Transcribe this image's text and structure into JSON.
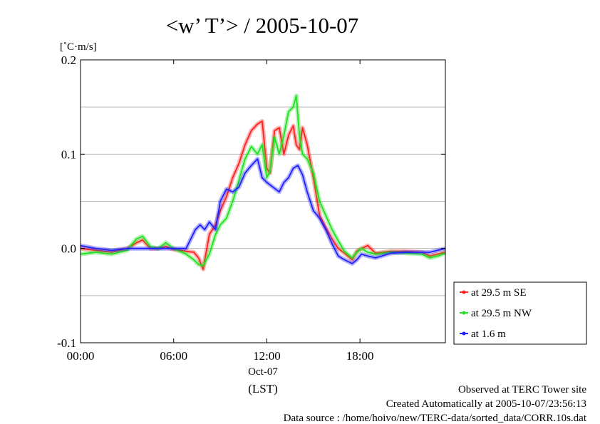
{
  "chart_data": {
    "type": "line",
    "title": "<w’ T’> / 2005-10-07",
    "ylabel": "[˚C·m/s]",
    "ylim": [
      -0.1,
      0.2
    ],
    "yticks": [
      {
        "value": 0.2,
        "label": "0.2"
      },
      {
        "value": 0.1,
        "label": "0.1"
      },
      {
        "value": 0.0,
        "label": "0.0"
      },
      {
        "value": -0.1,
        "label": "-0.1"
      }
    ],
    "xlim": [
      0,
      23.5
    ],
    "xticks": [
      {
        "value": 0,
        "label": "00:00"
      },
      {
        "value": 6,
        "label": "06:00"
      },
      {
        "value": 12,
        "label": "12:00"
      },
      {
        "value": 18,
        "label": "18:00"
      }
    ],
    "xdate_label": "Oct-07",
    "xunit_label": "(LST)",
    "grid_y": [
      0.15,
      0.1,
      0.05,
      0.0,
      -0.05
    ],
    "legend_position": "right, lower",
    "series": [
      {
        "name": "at 29.5 m SE",
        "color": "#ff2020",
        "points": [
          [
            0,
            0.0
          ],
          [
            1,
            -0.002
          ],
          [
            2,
            -0.004
          ],
          [
            3,
            0.0
          ],
          [
            3.6,
            0.006
          ],
          [
            4,
            0.009
          ],
          [
            4.5,
            0.0
          ],
          [
            5,
            0.0
          ],
          [
            5.5,
            0.002
          ],
          [
            6,
            -0.001
          ],
          [
            6.8,
            -0.003
          ],
          [
            7.3,
            -0.004
          ],
          [
            7.6,
            -0.01
          ],
          [
            7.9,
            -0.022
          ],
          [
            8.3,
            0.015
          ],
          [
            8.7,
            0.025
          ],
          [
            9.0,
            0.04
          ],
          [
            9.4,
            0.055
          ],
          [
            9.8,
            0.075
          ],
          [
            10.2,
            0.09
          ],
          [
            10.6,
            0.11
          ],
          [
            11.0,
            0.125
          ],
          [
            11.4,
            0.132
          ],
          [
            11.7,
            0.135
          ],
          [
            12.0,
            0.085
          ],
          [
            12.2,
            0.08
          ],
          [
            12.5,
            0.125
          ],
          [
            12.8,
            0.128
          ],
          [
            13.1,
            0.1
          ],
          [
            13.4,
            0.12
          ],
          [
            13.7,
            0.13
          ],
          [
            13.9,
            0.11
          ],
          [
            14.1,
            0.105
          ],
          [
            14.3,
            0.128
          ],
          [
            14.6,
            0.11
          ],
          [
            15.0,
            0.075
          ],
          [
            15.4,
            0.035
          ],
          [
            15.8,
            0.022
          ],
          [
            16.2,
            0.01
          ],
          [
            16.6,
            0.0
          ],
          [
            17.0,
            -0.005
          ],
          [
            17.5,
            -0.012
          ],
          [
            17.8,
            -0.003
          ],
          [
            18.1,
            0.0
          ],
          [
            18.5,
            0.003
          ],
          [
            19,
            -0.005
          ],
          [
            20,
            -0.003
          ],
          [
            21,
            -0.003
          ],
          [
            22,
            -0.004
          ],
          [
            22.5,
            -0.008
          ],
          [
            23.0,
            -0.006
          ],
          [
            23.5,
            -0.004
          ]
        ]
      },
      {
        "name": "at 29.5 m NW",
        "color": "#20e020",
        "points": [
          [
            0,
            -0.006
          ],
          [
            1,
            -0.004
          ],
          [
            2,
            -0.006
          ],
          [
            3,
            -0.002
          ],
          [
            3.6,
            0.01
          ],
          [
            4,
            0.013
          ],
          [
            4.5,
            0.002
          ],
          [
            5,
            0.0
          ],
          [
            5.5,
            0.006
          ],
          [
            6,
            0.0
          ],
          [
            6.8,
            -0.006
          ],
          [
            7.3,
            -0.012
          ],
          [
            7.6,
            -0.017
          ],
          [
            7.9,
            -0.018
          ],
          [
            8.3,
            -0.006
          ],
          [
            8.7,
            0.015
          ],
          [
            9.0,
            0.025
          ],
          [
            9.4,
            0.032
          ],
          [
            9.8,
            0.05
          ],
          [
            10.2,
            0.072
          ],
          [
            10.6,
            0.095
          ],
          [
            11.0,
            0.108
          ],
          [
            11.4,
            0.1
          ],
          [
            11.7,
            0.11
          ],
          [
            12.0,
            0.075
          ],
          [
            12.2,
            0.082
          ],
          [
            12.5,
            0.118
          ],
          [
            12.8,
            0.1
          ],
          [
            13.1,
            0.12
          ],
          [
            13.4,
            0.145
          ],
          [
            13.7,
            0.15
          ],
          [
            13.9,
            0.162
          ],
          [
            14.1,
            0.12
          ],
          [
            14.3,
            0.1
          ],
          [
            14.6,
            0.095
          ],
          [
            15.0,
            0.08
          ],
          [
            15.4,
            0.05
          ],
          [
            15.8,
            0.035
          ],
          [
            16.2,
            0.02
          ],
          [
            16.6,
            0.008
          ],
          [
            17.0,
            -0.003
          ],
          [
            17.5,
            -0.01
          ],
          [
            17.8,
            -0.004
          ],
          [
            18.1,
            0.0
          ],
          [
            18.5,
            -0.004
          ],
          [
            19,
            -0.006
          ],
          [
            20,
            -0.004
          ],
          [
            21,
            -0.005
          ],
          [
            22,
            -0.006
          ],
          [
            22.5,
            -0.01
          ],
          [
            23.0,
            -0.008
          ],
          [
            23.5,
            -0.005
          ]
        ]
      },
      {
        "name": "at 1.6 m",
        "color": "#2020ff",
        "points": [
          [
            0,
            0.003
          ],
          [
            1,
            0.0
          ],
          [
            2,
            -0.002
          ],
          [
            3,
            0.0
          ],
          [
            3.6,
            0.0
          ],
          [
            4,
            0.0
          ],
          [
            4.5,
            0.0
          ],
          [
            5,
            0.0
          ],
          [
            5.5,
            0.0
          ],
          [
            6,
            0.0
          ],
          [
            6.8,
            0.0
          ],
          [
            7.1,
            0.01
          ],
          [
            7.4,
            0.02
          ],
          [
            7.7,
            0.025
          ],
          [
            8.0,
            0.02
          ],
          [
            8.3,
            0.028
          ],
          [
            8.7,
            0.02
          ],
          [
            9.0,
            0.05
          ],
          [
            9.4,
            0.063
          ],
          [
            9.8,
            0.06
          ],
          [
            10.2,
            0.065
          ],
          [
            10.6,
            0.08
          ],
          [
            11.0,
            0.088
          ],
          [
            11.4,
            0.095
          ],
          [
            11.7,
            0.075
          ],
          [
            12.0,
            0.07
          ],
          [
            12.4,
            0.065
          ],
          [
            12.8,
            0.06
          ],
          [
            13.1,
            0.07
          ],
          [
            13.4,
            0.075
          ],
          [
            13.7,
            0.085
          ],
          [
            14.0,
            0.088
          ],
          [
            14.3,
            0.078
          ],
          [
            14.6,
            0.06
          ],
          [
            15.0,
            0.04
          ],
          [
            15.4,
            0.032
          ],
          [
            15.8,
            0.02
          ],
          [
            16.2,
            0.005
          ],
          [
            16.6,
            -0.008
          ],
          [
            17.0,
            -0.012
          ],
          [
            17.5,
            -0.016
          ],
          [
            17.8,
            -0.012
          ],
          [
            18.1,
            -0.006
          ],
          [
            18.5,
            -0.008
          ],
          [
            19,
            -0.01
          ],
          [
            20,
            -0.005
          ],
          [
            21,
            -0.004
          ],
          [
            22,
            -0.004
          ],
          [
            22.5,
            -0.004
          ],
          [
            23.0,
            -0.002
          ],
          [
            23.5,
            0.0
          ]
        ]
      }
    ]
  },
  "footer": {
    "line1": "Observed at TERC Tower site",
    "line2": "Created Automatically at 2005-10-07/23:56:13",
    "line3": "Data source : /home/hoivo/new/TERC-data/sorted_data/CORR.10s.dat"
  },
  "colors": {
    "grid": "#b8b8b8",
    "frame": "#000000"
  }
}
